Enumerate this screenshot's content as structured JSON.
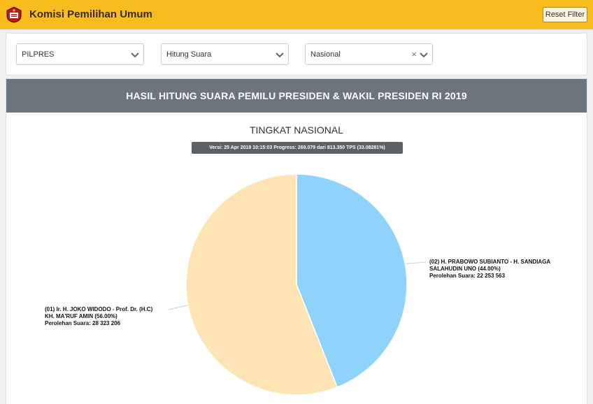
{
  "header": {
    "title": "Komisi Pemilihan Umum",
    "reset_label": "Reset Filter",
    "colors": {
      "bar": "#f8bd1c"
    }
  },
  "filters": {
    "election": "PILPRES",
    "mode": "Hitung Suara",
    "region": "Nasional",
    "clear_symbol": "×"
  },
  "result": {
    "header": "HASIL HITUNG SUARA PEMILU PRESIDEN & WAKIL PRESIDEN RI 2019",
    "subtitle": "TINGKAT NASIONAL",
    "version": "Versi: 25 Apr 2019 10:15:03 Progress: 269.079 dari 813.350 TPS (33.08281%)"
  },
  "chart_data": {
    "type": "pie",
    "slices": [
      {
        "label_line1": "(02) H. PRABOWO SUBIANTO - H. SANDIAGA",
        "label_line2": "SALAHUDIN UNO (44.00%)",
        "votes_text": "Perolehan Suara: 22 253 563",
        "percent": 44.0,
        "votes": 22253563,
        "color": "#8fd3fb"
      },
      {
        "label_line1": "(01) Ir. H. JOKO WIDODO - Prof. Dr. (H.C)",
        "label_line2": "KH. MA'RUF AMIN (56.00%)",
        "votes_text": "Perolehan Suara: 28 323 206",
        "percent": 56.0,
        "votes": 28323206,
        "color": "#fde4b4"
      }
    ]
  }
}
